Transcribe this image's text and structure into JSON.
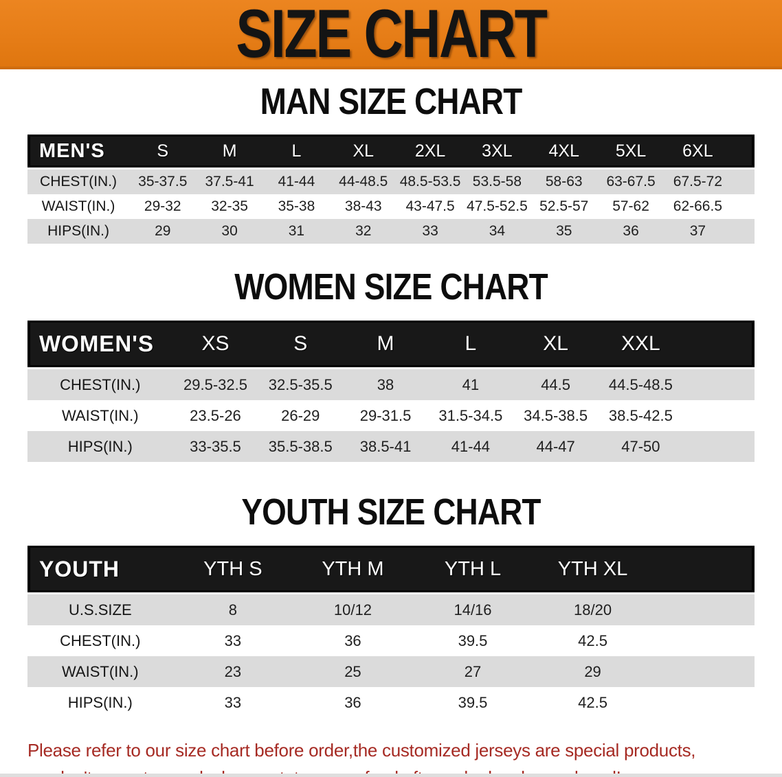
{
  "banner": {
    "title": "SIZE CHART",
    "bg_color": "#E67D17",
    "text_color": "#141414"
  },
  "sections": [
    {
      "heading": "MAN SIZE CHART",
      "table": {
        "header_label": "MEN'S",
        "columns": [
          "S",
          "M",
          "L",
          "XL",
          "2XL",
          "3XL",
          "4XL",
          "5XL",
          "6XL"
        ],
        "rows": [
          {
            "label": "CHEST(IN.)",
            "values": [
              "35-37.5",
              "37.5-41",
              "41-44",
              "44-48.5",
              "48.5-53.5",
              "53.5-58",
              "58-63",
              "63-67.5",
              "67.5-72"
            ]
          },
          {
            "label": "WAIST(IN.)",
            "values": [
              "29-32",
              "32-35",
              "35-38",
              "38-43",
              "43-47.5",
              "47.5-52.5",
              "52.5-57",
              "57-62",
              "62-66.5"
            ]
          },
          {
            "label": "HIPS(IN.)",
            "values": [
              "29",
              "30",
              "31",
              "32",
              "33",
              "34",
              "35",
              "36",
              "37"
            ]
          }
        ]
      }
    },
    {
      "heading": "WOMEN SIZE CHART",
      "table": {
        "header_label": "WOMEN'S",
        "columns": [
          "XS",
          "S",
          "M",
          "L",
          "XL",
          "XXL"
        ],
        "rows": [
          {
            "label": "CHEST(IN.)",
            "values": [
              "29.5-32.5",
              "32.5-35.5",
              "38",
              "41",
              "44.5",
              "44.5-48.5"
            ]
          },
          {
            "label": "WAIST(IN.)",
            "values": [
              "23.5-26",
              "26-29",
              "29-31.5",
              "31.5-34.5",
              "34.5-38.5",
              "38.5-42.5"
            ]
          },
          {
            "label": "HIPS(IN.)",
            "values": [
              "33-35.5",
              "35.5-38.5",
              "38.5-41",
              "41-44",
              "44-47",
              "47-50"
            ]
          }
        ]
      }
    },
    {
      "heading": "YOUTH SIZE CHART",
      "table": {
        "header_label": "YOUTH",
        "columns": [
          "YTH S",
          "YTH M",
          "YTH L",
          "YTH XL"
        ],
        "rows": [
          {
            "label": "U.S.SIZE",
            "values": [
              "8",
              "10/12",
              "14/16",
              "18/20"
            ]
          },
          {
            "label": "CHEST(IN.)",
            "values": [
              "33",
              "36",
              "39.5",
              "42.5"
            ]
          },
          {
            "label": "WAIST(IN.)",
            "values": [
              "23",
              "25",
              "27",
              "29"
            ]
          },
          {
            "label": "HIPS(IN.)",
            "values": [
              "33",
              "36",
              "39.5",
              "42.5"
            ]
          }
        ]
      }
    }
  ],
  "footer": {
    "line1": "Please refer to our size chart before order,the customized jerseys are special products,",
    "line2": "we don't accept cancel, change, teturn or refund after order has been placed!",
    "text_color": "#A62B24"
  },
  "colors": {
    "banner_orange": "#E67D17",
    "header_black": "#181818",
    "row_gray": "#DBDBDB",
    "row_white": "#FFFFFF",
    "notice_red": "#A62B24"
  }
}
